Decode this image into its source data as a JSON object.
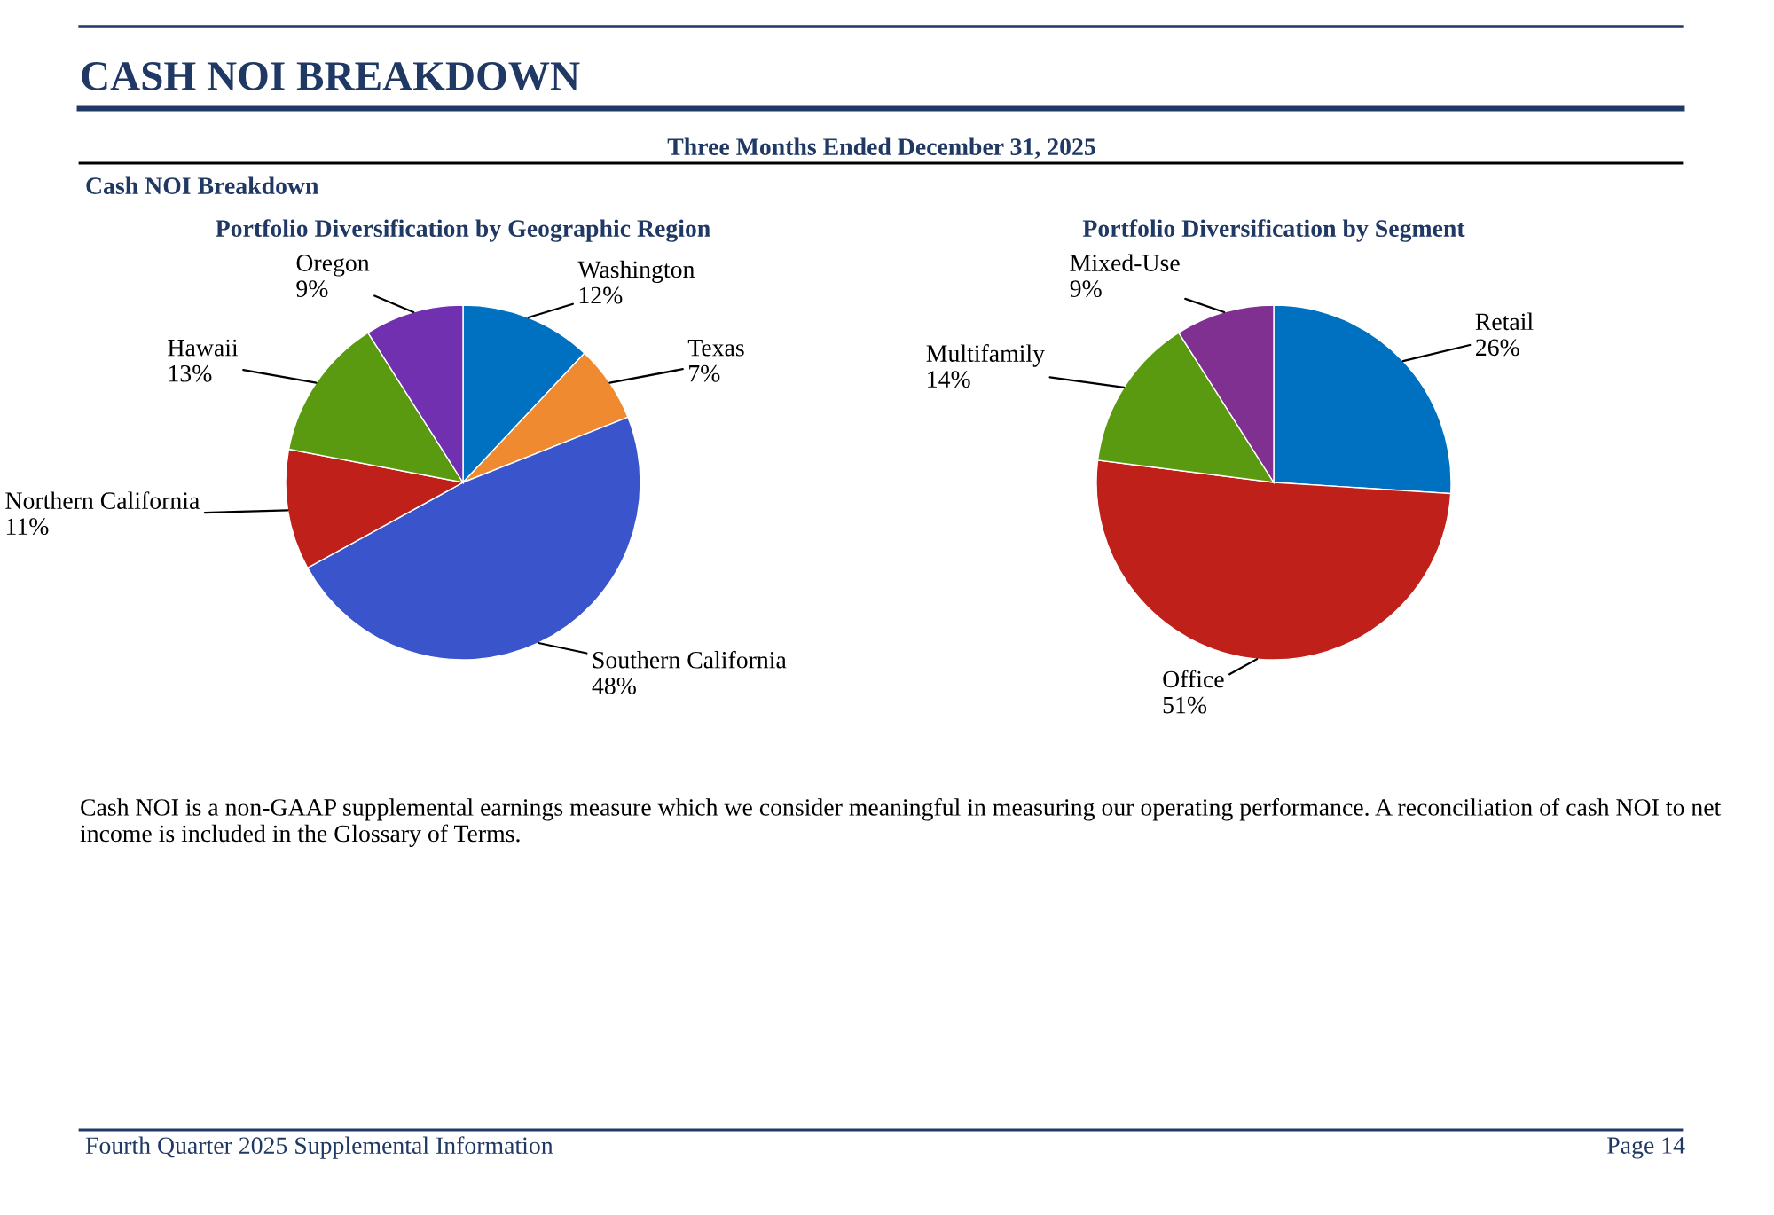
{
  "chart_data": [
    {
      "type": "pie",
      "title": "Portfolio Diversification by Geographic Region",
      "categories": [
        "Washington",
        "Texas",
        "Southern California",
        "Northern California",
        "Hawaii",
        "Oregon"
      ],
      "values": [
        12,
        7,
        48,
        11,
        13,
        9
      ],
      "value_labels": [
        "12%",
        "7%",
        "48%",
        "11%",
        "13%",
        "9%"
      ],
      "colors": [
        "#0070c0",
        "#f08a30",
        "#3a55cc",
        "#c0201a",
        "#5a9a10",
        "#7030b0"
      ],
      "annotations": [
        "CASH NOI BREAKDOWN",
        "Three Months Ended December 31, 2025",
        "Cash NOI Breakdown",
        "Cash NOI is a non-GAAP supplemental earnings measure which we consider meaningful in measuring our operating performance. A reconciliation of cash NOI to net income is included in the Glossary of Terms.",
        "Fourth Quarter 2025 Supplemental Information",
        "Page 14"
      ]
    },
    {
      "type": "pie",
      "title": "Portfolio Diversification by Segment",
      "categories": [
        "Retail",
        "Office",
        "Multifamily",
        "Mixed-Use"
      ],
      "values": [
        26,
        51,
        14,
        9
      ],
      "value_labels": [
        "26%",
        "51%",
        "14%",
        "9%"
      ],
      "colors": [
        "#0070c0",
        "#c0201a",
        "#5a9a10",
        "#7f3090"
      ]
    }
  ]
}
